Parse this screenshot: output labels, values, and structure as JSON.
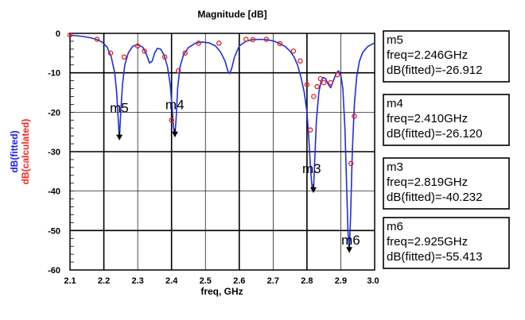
{
  "chart_data": {
    "type": "line",
    "title": "Magnitude [dB]",
    "xlabel": "freq, GHz",
    "ylabels": [
      {
        "text": "dB(fitted)",
        "color": "#1a1aff"
      },
      {
        "text": "dB(calculated)",
        "color": "#ff2020"
      }
    ],
    "xlim": [
      2.1,
      3.0
    ],
    "ylim": [
      -60,
      0
    ],
    "x_ticks": [
      "2.1",
      "2.2",
      "2.3",
      "2.4",
      "2.5",
      "2.6",
      "2.7",
      "2.8",
      "2.9",
      "3.0"
    ],
    "y_ticks": [
      "0",
      "-10",
      "-20",
      "-30",
      "-40",
      "-50",
      "-60"
    ],
    "grid": true,
    "series": [
      {
        "name": "dB(fitted)",
        "style": "line",
        "color": "#1f2fd8",
        "x": [
          2.1,
          2.12,
          2.14,
          2.16,
          2.18,
          2.195,
          2.21,
          2.222,
          2.232,
          2.238,
          2.242,
          2.246,
          2.25,
          2.255,
          2.262,
          2.272,
          2.285,
          2.3,
          2.315,
          2.325,
          2.335,
          2.343,
          2.35,
          2.358,
          2.368,
          2.378,
          2.388,
          2.396,
          2.402,
          2.406,
          2.41,
          2.414,
          2.418,
          2.425,
          2.435,
          2.45,
          2.47,
          2.49,
          2.51,
          2.53,
          2.545,
          2.558,
          2.566,
          2.572,
          2.578,
          2.586,
          2.6,
          2.62,
          2.64,
          2.66,
          2.68,
          2.7,
          2.72,
          2.735,
          2.75,
          2.762,
          2.772,
          2.782,
          2.792,
          2.8,
          2.806,
          2.811,
          2.815,
          2.819,
          2.823,
          2.828,
          2.835,
          2.842,
          2.848,
          2.855,
          2.862,
          2.87,
          2.878,
          2.886,
          2.893,
          2.9,
          2.906,
          2.912,
          2.917,
          2.921,
          2.925,
          2.929,
          2.934,
          2.94,
          2.947,
          2.955,
          2.965,
          2.98,
          3.0
        ],
        "y": [
          -0.5,
          -0.6,
          -0.8,
          -1.1,
          -1.6,
          -2.2,
          -3.5,
          -6.0,
          -10.0,
          -15.0,
          -21.0,
          -26.9,
          -20.0,
          -13.0,
          -8.0,
          -5.0,
          -3.3,
          -2.8,
          -3.5,
          -5.2,
          -7.5,
          -7.0,
          -5.0,
          -3.8,
          -4.0,
          -5.5,
          -8.5,
          -13.0,
          -19.0,
          -24.0,
          -26.1,
          -21.0,
          -14.0,
          -8.5,
          -5.5,
          -3.6,
          -2.5,
          -2.2,
          -2.4,
          -3.2,
          -4.8,
          -7.0,
          -9.5,
          -10.2,
          -8.8,
          -6.0,
          -3.2,
          -2.0,
          -1.6,
          -1.5,
          -1.6,
          -1.9,
          -2.6,
          -3.3,
          -4.5,
          -6.0,
          -8.0,
          -11.0,
          -15.0,
          -20.0,
          -27.0,
          -35.0,
          -39.0,
          -40.2,
          -32.0,
          -22.0,
          -15.0,
          -12.0,
          -11.2,
          -11.5,
          -12.8,
          -13.8,
          -12.0,
          -10.2,
          -9.5,
          -10.5,
          -14.0,
          -24.0,
          -38.0,
          -50.0,
          -55.4,
          -46.0,
          -30.0,
          -18.0,
          -11.0,
          -7.0,
          -4.8,
          -3.3,
          -2.4
        ]
      },
      {
        "name": "dB(calculated)",
        "style": "markers",
        "color": "#e02020",
        "x": [
          2.1,
          2.18,
          2.22,
          2.26,
          2.3,
          2.32,
          2.38,
          2.4,
          2.42,
          2.44,
          2.48,
          2.54,
          2.62,
          2.64,
          2.68,
          2.72,
          2.76,
          2.78,
          2.8,
          2.81,
          2.82,
          2.83,
          2.84,
          2.85,
          2.87,
          2.89,
          2.93,
          2.94
        ],
        "y": [
          -0.4,
          -1.5,
          -5.0,
          -6.0,
          -3.2,
          -4.5,
          -6.0,
          -22.0,
          -9.5,
          -5.0,
          -2.5,
          -2.5,
          -1.5,
          -1.6,
          -1.5,
          -2.6,
          -4.5,
          -7.0,
          -13.0,
          -24.5,
          -16.0,
          -13.5,
          -11.5,
          -12.5,
          -12.5,
          -10.5,
          -33.0,
          -21.0
        ]
      }
    ],
    "markers": [
      {
        "label": "m5",
        "x": 2.246,
        "y": -26.912
      },
      {
        "label": "m4",
        "x": 2.41,
        "y": -26.12
      },
      {
        "label": "m3",
        "x": 2.819,
        "y": -40.232
      },
      {
        "label": "m6",
        "x": 2.925,
        "y": -55.413
      }
    ],
    "readouts": [
      {
        "name": "m5",
        "freq": "freq=2.246GHz",
        "db": "dB(fitted)=-26.912"
      },
      {
        "name": "m4",
        "freq": "freq=2.410GHz",
        "db": "dB(fitted)=-26.120"
      },
      {
        "name": "m3",
        "freq": "freq=2.819GHz",
        "db": "dB(fitted)=-40.232"
      },
      {
        "name": "m6",
        "freq": "freq=2.925GHz",
        "db": "dB(fitted)=-55.413"
      }
    ]
  }
}
